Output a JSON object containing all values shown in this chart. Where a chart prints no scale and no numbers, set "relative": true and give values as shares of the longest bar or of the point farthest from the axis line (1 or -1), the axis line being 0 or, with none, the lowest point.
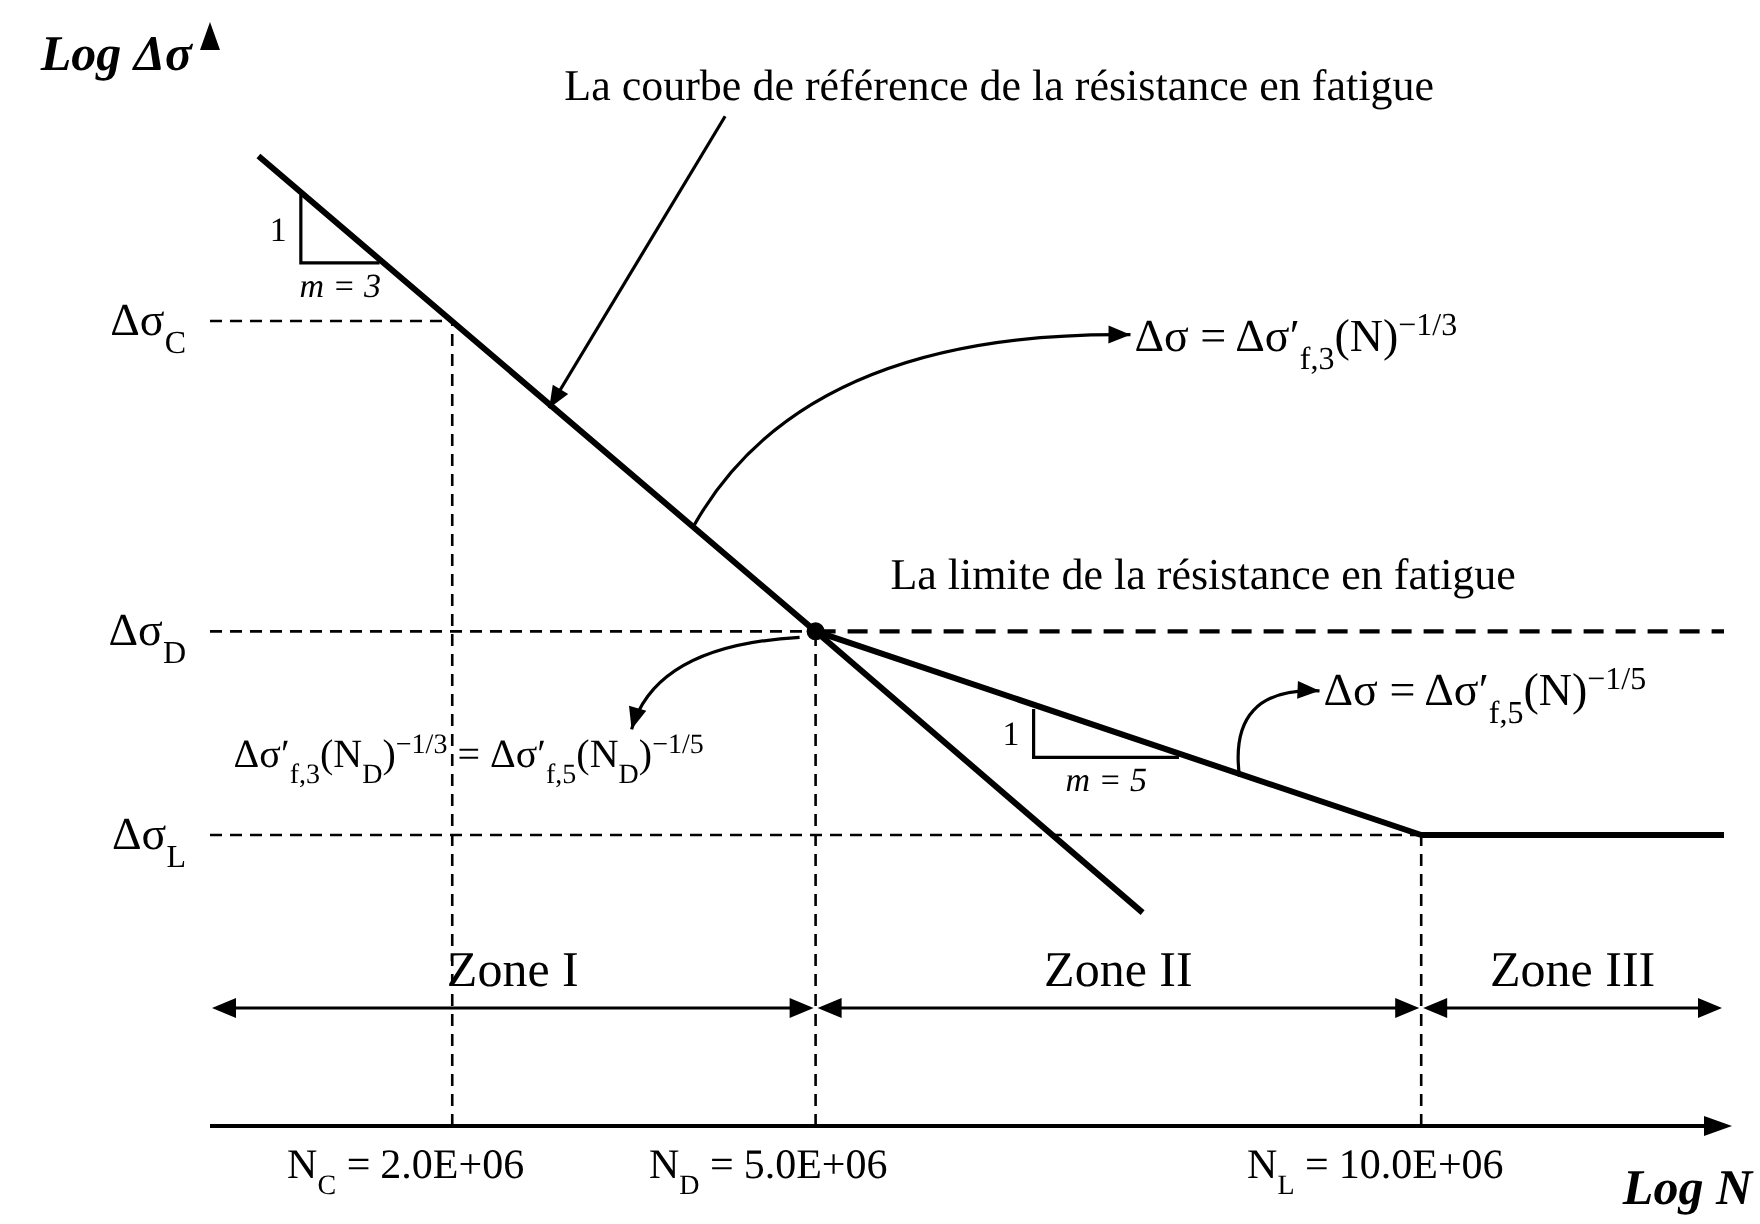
{
  "chart_data": {
    "type": "line",
    "xlabel": "Log N",
    "ylabel": "Log Δσ",
    "relative": true,
    "xlim": [
      0,
      12500000
    ],
    "xticks": [
      {
        "value": 2000000,
        "label": "2.0E+06"
      },
      {
        "value": 5000000,
        "label": "5.0E+06"
      },
      {
        "value": 10000000,
        "label": "10.0E+06"
      }
    ],
    "series": [
      {
        "color": "#000000",
        "x": [
          400000,
          5000000,
          10000000,
          12500000
        ],
        "values": [
          1,
          0.51,
          0.3,
          0.3
        ],
        "line_style": "solid"
      },
      {
        "color": "#000000",
        "x": [
          5000000,
          7700000
        ],
        "values": [
          0.51,
          0.22
        ],
        "line_style": "solid"
      },
      {
        "color": "#000000",
        "x": [
          5000000,
          12500000
        ],
        "values": [
          0.51,
          0.51
        ],
        "line_style": "dashed"
      },
      {
        "type": "scatter",
        "color": "#000000",
        "x": [
          5000000
        ],
        "values": [
          0.51
        ],
        "marker": "circle"
      }
    ],
    "ref_lines": [
      {
        "axis": "y",
        "value": 0.83,
        "label": "Δσ$_{C}$",
        "line_style": "dashed"
      },
      {
        "axis": "y",
        "value": 0.51,
        "label": "Δσ$_{D}$",
        "line_style": "dashed"
      },
      {
        "axis": "y",
        "value": 0.3,
        "label": "Δσ$_{L}$",
        "line_style": "dashed"
      },
      {
        "axis": "x",
        "value": 2000000,
        "label": "N$_{C}$ =",
        "line_style": "dashed"
      },
      {
        "axis": "x",
        "value": 5000000,
        "label": "N$_{D}$ =",
        "line_style": "dashed"
      },
      {
        "axis": "x",
        "value": 10000000,
        "label": "N$_{L}$ =",
        "line_style": "dashed"
      }
    ],
    "annotations": [
      {
        "text": "La courbe de référence de la résistance en fatigue",
        "x": 2800000,
        "y": 0.74
      },
      {
        "text": "Δσ = Δσ′$_{f,3}$(N)$^{−1/3}$",
        "x": 4000000,
        "y": 0.62
      },
      {
        "text": "La limite de la résistance en fatigue",
        "x": 8200000,
        "y": 0.51
      },
      "Δσ′$_{f,3}$(N$_{D}$)$^{−1/3}$ = Δσ′$_{f,5}$(N$_{D}$)$^{−1/5}$",
      {
        "text": "Δσ = Δσ′$_{f,5}$(N)$^{−1/5}$",
        "x": 8500000,
        "y": 0.36
      },
      {
        "text": "1",
        "x": 750000,
        "y": 0.96
      },
      {
        "text": "m = 3",
        "x": 1400000,
        "y": 0.89
      },
      {
        "text": "1",
        "x": 6800000,
        "y": 0.43
      },
      {
        "text": "m = 5",
        "x": 8000000,
        "y": 0.38
      },
      "Zone I",
      "Zone II",
      "Zone III"
    ]
  }
}
